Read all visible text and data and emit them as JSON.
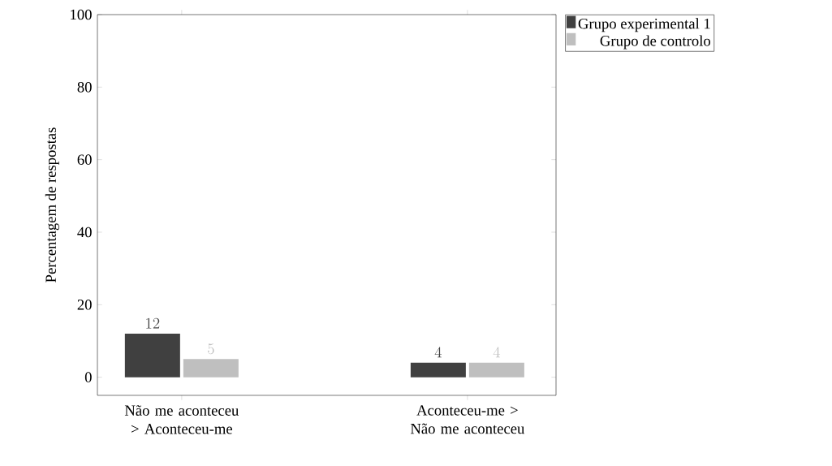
{
  "chart_data": {
    "type": "bar",
    "ylabel": "Percentagem de respostas",
    "categories": [
      "Não me aconteceu > Aconteceu-me",
      "Aconteceu-me > Não me aconteceu"
    ],
    "series": [
      {
        "name": "Grupo experimental 1",
        "color": "#404040",
        "values": [
          12,
          4
        ]
      },
      {
        "name": "Grupo de controlo",
        "color": "#bfbfbf",
        "values": [
          5,
          4
        ]
      }
    ],
    "ylim": [
      -5,
      100
    ],
    "yticks": [
      0,
      20,
      40,
      60,
      80,
      100
    ],
    "data_labels": true,
    "legend": "top right",
    "grid": false
  }
}
